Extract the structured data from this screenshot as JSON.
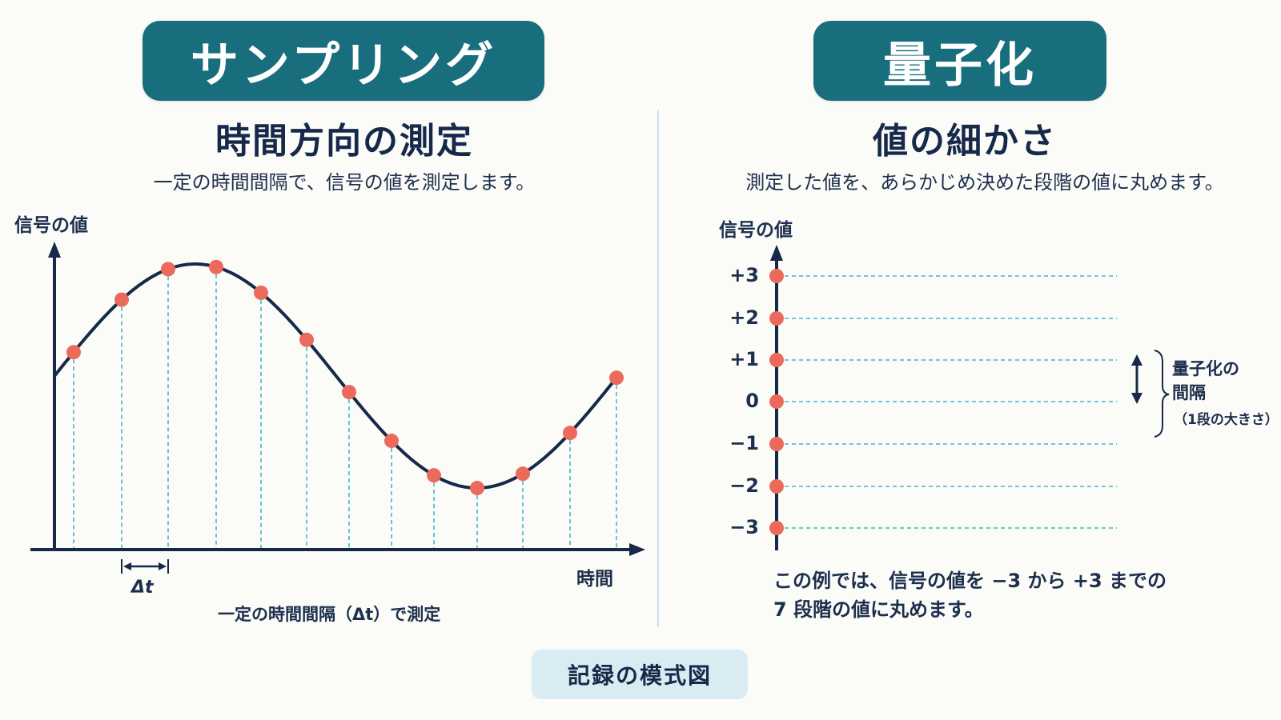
{
  "left": {
    "pill_title": "サンプリング",
    "subtitle": "時間方向の測定",
    "description": "一定の時間間隔で、信号の値を測定します。",
    "y_axis_label": "信号の値",
    "x_axis_label": "時間",
    "interval_label": "Δt",
    "caption": "一定の時間間隔（Δt）で測定"
  },
  "right": {
    "pill_title": "量子化",
    "subtitle": "値の細かさ",
    "description": "測定した値を、あらかじめ決めた段階の値に丸めます。",
    "y_axis_label": "信号の値",
    "levels": [
      "+3",
      "+2",
      "+1",
      "0",
      "−1",
      "−2",
      "−3"
    ],
    "interval_label_1": "量子化の",
    "interval_label_2": "間隔",
    "interval_note": "（1段の大きさ）",
    "note_line1": "この例では、信号の値を −3 から +3 までの",
    "note_line2": "7 段階の値に丸めます。"
  },
  "footer": "記録の模式図",
  "colors": {
    "pill": "#186e7c",
    "axis": "#16294a",
    "sample_dot": "#ec6a5c",
    "guide_line": "#3fb7c9",
    "footer_bg": "#d9ecf1"
  }
}
